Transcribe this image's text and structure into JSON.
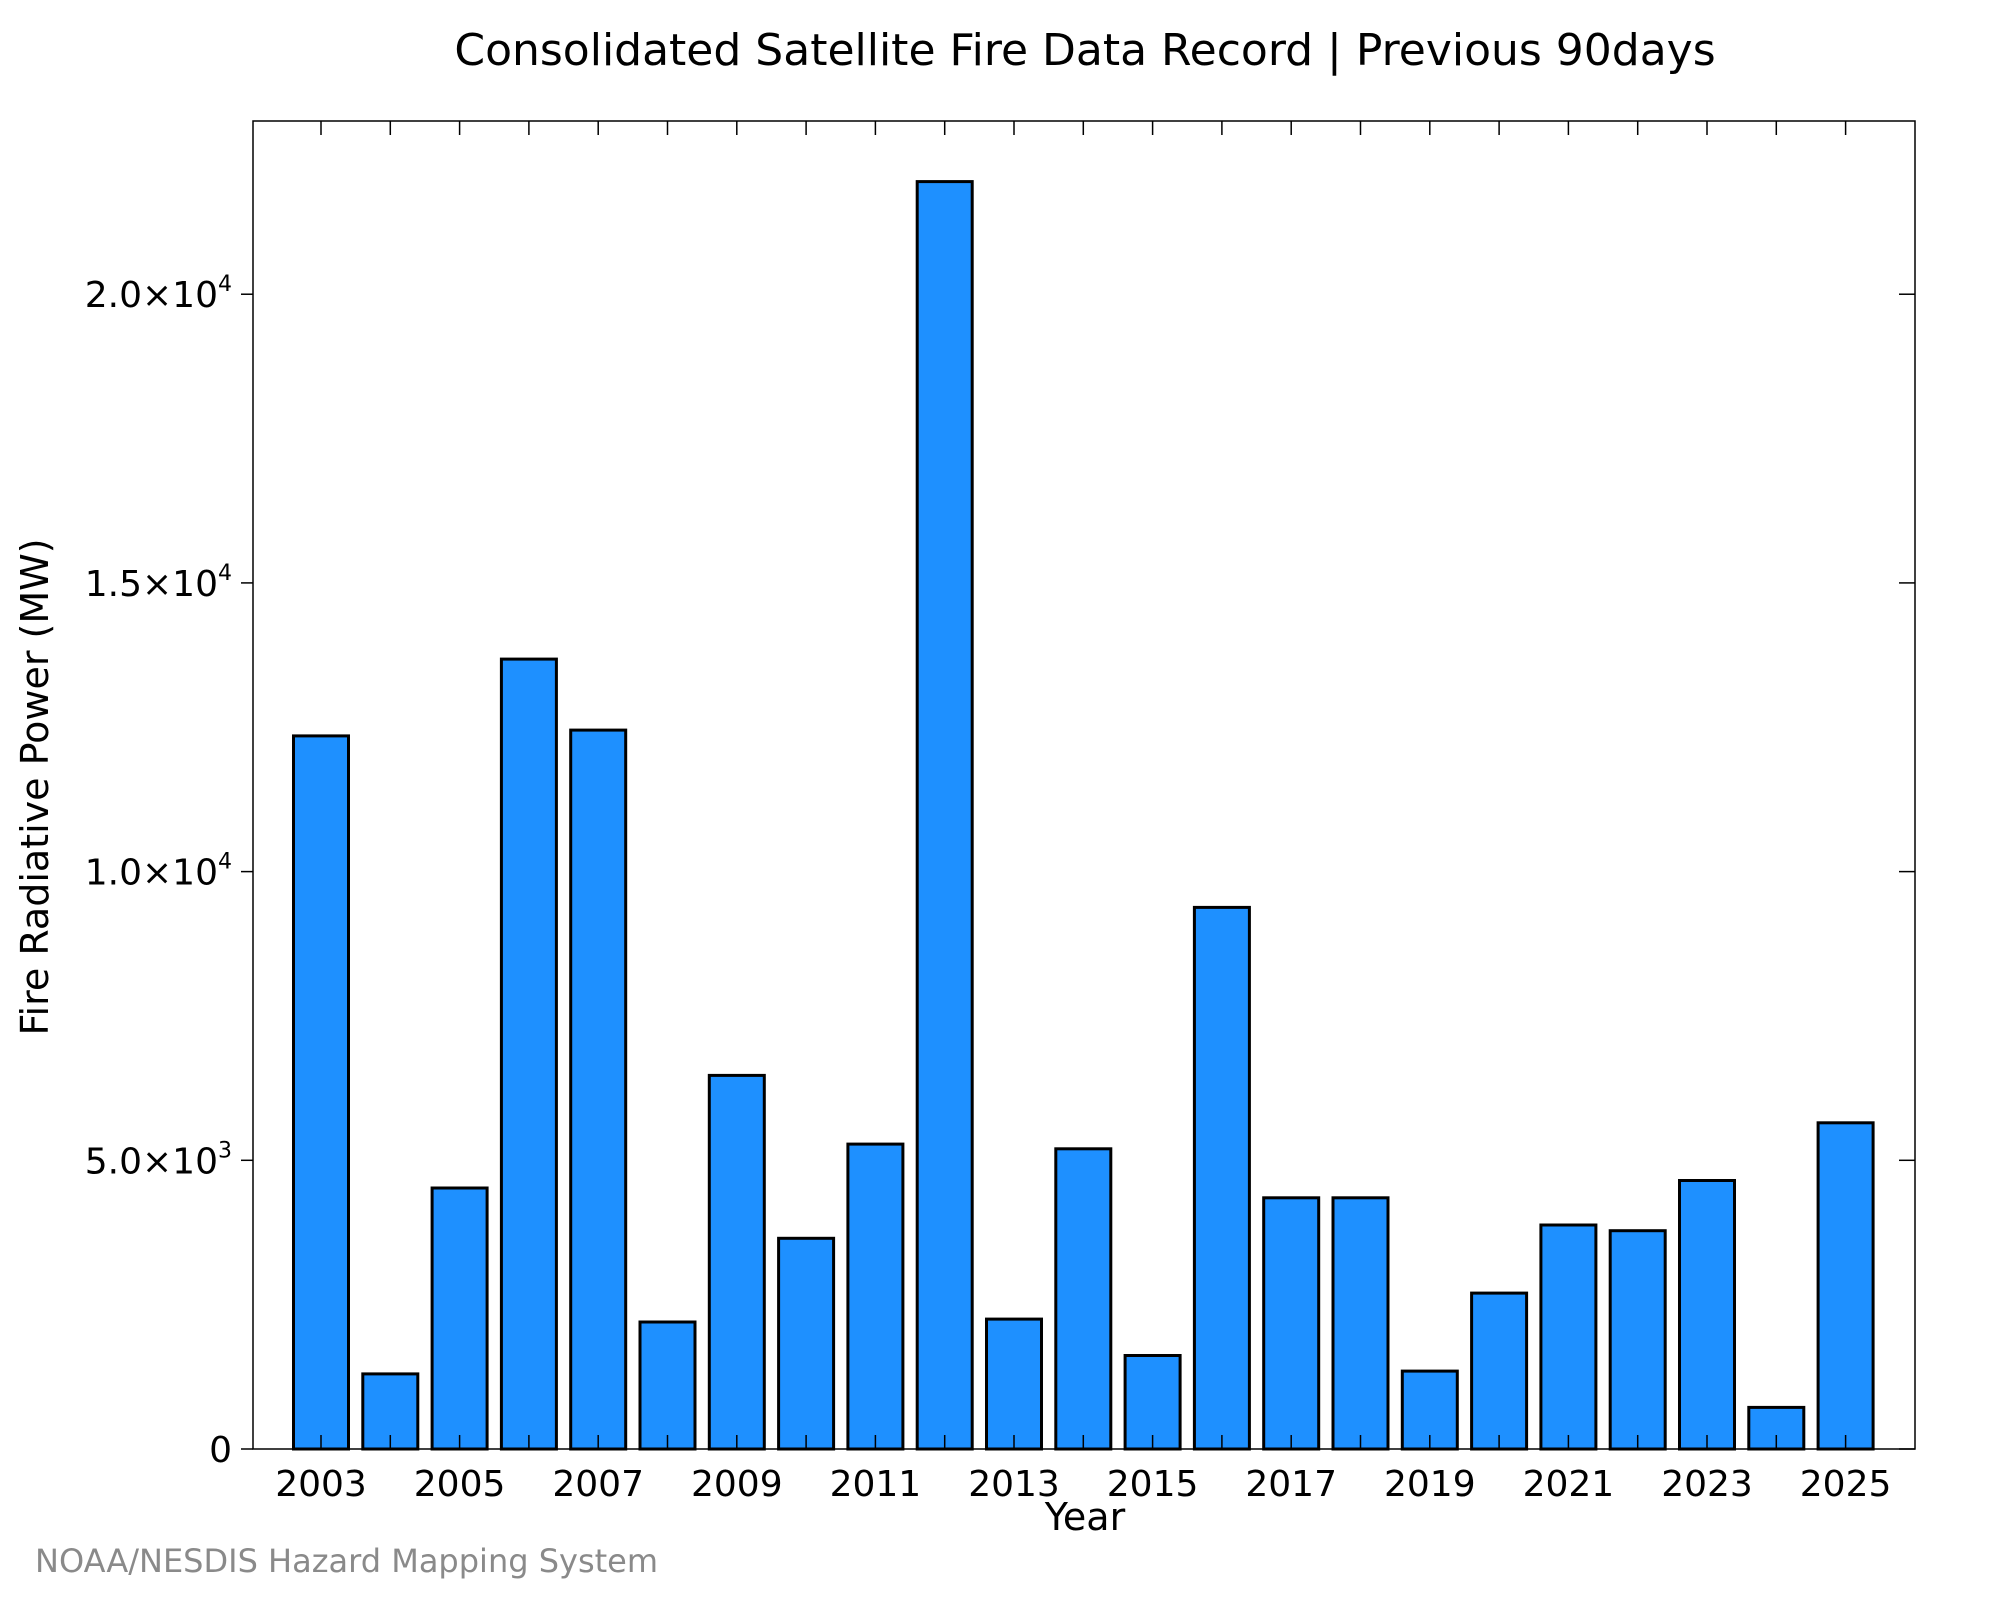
{
  "colors": {
    "bar_fill": "#1e90ff",
    "bar_stroke": "#000000",
    "credit": "#8a8a8a"
  },
  "chart_data": {
    "type": "bar",
    "title": "Consolidated Satellite Fire Data Record | Previous 90days",
    "xlabel": "Year",
    "ylabel": "Fire Radiative Power (MW)",
    "categories": [
      "2003",
      "2004",
      "2005",
      "2006",
      "2007",
      "2008",
      "2009",
      "2010",
      "2011",
      "2012",
      "2013",
      "2014",
      "2015",
      "2016",
      "2017",
      "2018",
      "2019",
      "2020",
      "2021",
      "2022",
      "2023",
      "2024",
      "2025"
    ],
    "values": [
      12350,
      1300,
      4520,
      13680,
      12450,
      2200,
      6470,
      3650,
      5280,
      21950,
      2250,
      5200,
      1620,
      9380,
      4350,
      4350,
      1350,
      2700,
      3880,
      3780,
      4650,
      720,
      5650
    ],
    "x_tick_labels": [
      "2003",
      "2005",
      "2007",
      "2009",
      "2011",
      "2013",
      "2015",
      "2017",
      "2019",
      "2021",
      "2023",
      "2025"
    ],
    "y_ticks": [
      {
        "value": 0,
        "mantissa": "0",
        "exponent": ""
      },
      {
        "value": 5000,
        "mantissa": "5.0×10",
        "exponent": "3"
      },
      {
        "value": 10000,
        "mantissa": "1.0×10",
        "exponent": "4"
      },
      {
        "value": 15000,
        "mantissa": "1.5×10",
        "exponent": "4"
      },
      {
        "value": 20000,
        "mantissa": "2.0×10",
        "exponent": "4"
      }
    ],
    "ylim": [
      0,
      23000
    ],
    "grid": false,
    "credit": "NOAA/NESDIS Hazard Mapping System"
  }
}
